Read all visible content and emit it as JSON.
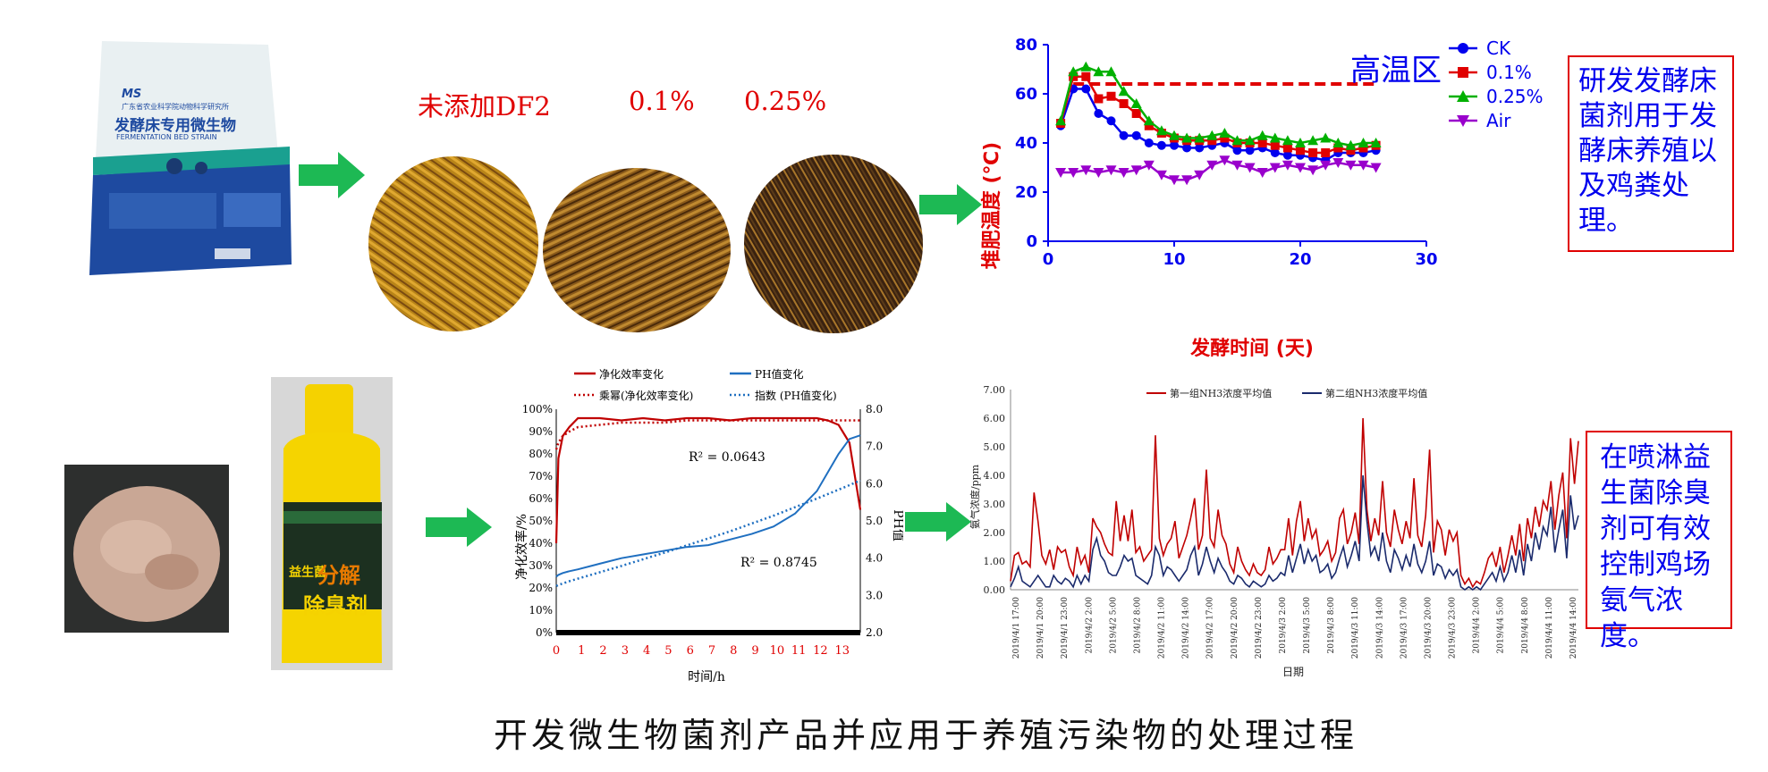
{
  "caption": "开发微生物菌剂产品并应用于养殖污染物的处理过程",
  "product_bag": {
    "brand": "MS",
    "org": "广东省农业科学院动物科学研究所",
    "title": "发酵床专用微生物",
    "title_en": "FERMENTATION BED STRAIN"
  },
  "bedding_labels": [
    "未添加DF2",
    "0.1%",
    "0.25%"
  ],
  "compost_note": "研发发酵床菌剂用于发酵床养殖以及鸡粪处理。",
  "spray_note": "在喷淋益生菌除臭剂可有效控制鸡场氨气浓度。",
  "bottle": {
    "brand_top": "益生菌",
    "big": "分解",
    "name": "除臭剂"
  },
  "colors": {
    "arrow": "#1db954",
    "red": "#e00000",
    "blue": "#0000ee",
    "green": "#00b000",
    "purple": "#9900cc",
    "navy": "#1a2a6c",
    "steel": "#1f6fc0"
  },
  "chart_data": [
    {
      "type": "line",
      "xlabel": "发酵时间 (天)",
      "ylabel": "堆肥温度 (℃)",
      "xlim": [
        0,
        30
      ],
      "ylim": [
        0,
        80
      ],
      "xticks": [
        0,
        10,
        20,
        30
      ],
      "yticks": [
        0,
        20,
        40,
        60,
        80
      ],
      "annotation": "高温区",
      "threshold": 64,
      "legend_position": "right",
      "x": [
        1,
        2,
        3,
        4,
        5,
        6,
        7,
        8,
        9,
        10,
        11,
        12,
        13,
        14,
        15,
        16,
        17,
        18,
        19,
        20,
        21,
        22,
        23,
        24,
        25,
        26
      ],
      "series": [
        {
          "name": "CK",
          "color": "#0000ee",
          "marker": "circle",
          "values": [
            47,
            62,
            62,
            52,
            49,
            43,
            43,
            40,
            39,
            39,
            38,
            38,
            39,
            40,
            37,
            37,
            38,
            36,
            35,
            35,
            34,
            33,
            36,
            36,
            36,
            37
          ]
        },
        {
          "name": "0.1%",
          "color": "#e00000",
          "marker": "square",
          "values": [
            48,
            67,
            67,
            58,
            59,
            56,
            52,
            47,
            44,
            42,
            41,
            41,
            41,
            42,
            40,
            40,
            40,
            39,
            38,
            37,
            36,
            36,
            38,
            37,
            38,
            39
          ]
        },
        {
          "name": "0.25%",
          "color": "#00b000",
          "marker": "triangle-up",
          "values": [
            49,
            69,
            71,
            69,
            69,
            61,
            56,
            49,
            45,
            43,
            42,
            42,
            43,
            44,
            41,
            41,
            43,
            42,
            41,
            40,
            41,
            42,
            40,
            39,
            40,
            40
          ]
        },
        {
          "name": "Air",
          "color": "#9900cc",
          "marker": "triangle-down",
          "values": [
            28,
            28,
            29,
            28,
            29,
            28,
            29,
            31,
            27,
            25,
            25,
            27,
            31,
            33,
            31,
            30,
            28,
            30,
            31,
            30,
            29,
            31,
            32,
            31,
            31,
            30
          ]
        }
      ]
    },
    {
      "type": "line",
      "xlabel": "时间/h",
      "ylabel": "净化效率/%",
      "y2label": "PH值",
      "xticks": [
        0,
        1,
        2,
        3,
        4,
        5,
        6,
        7,
        8,
        9,
        10,
        11,
        12,
        13
      ],
      "yticks": [
        "0%",
        "10%",
        "20%",
        "30%",
        "40%",
        "50%",
        "60%",
        "70%",
        "80%",
        "90%",
        "100%"
      ],
      "y2ticks": [
        "2.0",
        "3.0",
        "4.0",
        "5.0",
        "6.0",
        "7.0",
        "8.0"
      ],
      "xlim": [
        0,
        14
      ],
      "ylim": [
        0,
        100
      ],
      "y2lim": [
        2.0,
        8.0
      ],
      "legend": [
        "净化效率变化",
        "PH值变化",
        "乘幂(净化效率变化)",
        "指数 (PH值变化)"
      ],
      "r2_labels": [
        "R² = 0.0643",
        "R² = 0.8745"
      ],
      "x": [
        0,
        0.1,
        0.3,
        0.6,
        1,
        2,
        3,
        4,
        5,
        6,
        7,
        8,
        9,
        10,
        11,
        12,
        12.5,
        13,
        13.5,
        14
      ],
      "series": [
        {
          "name": "净化效率变化",
          "axis": "left",
          "values": [
            40,
            78,
            88,
            92,
            96,
            96,
            95,
            96,
            95,
            96,
            96,
            95,
            96,
            96,
            96,
            96,
            95,
            93,
            85,
            55
          ]
        },
        {
          "name": "PH值变化",
          "axis": "right",
          "values": [
            3.5,
            3.55,
            3.6,
            3.65,
            3.7,
            3.85,
            4.0,
            4.1,
            4.2,
            4.3,
            4.35,
            4.5,
            4.65,
            4.85,
            5.2,
            5.8,
            6.3,
            6.8,
            7.2,
            7.3
          ]
        },
        {
          "name": "乘幂(净化效率变化)",
          "axis": "left",
          "values": [
            82,
            85,
            88,
            90,
            92,
            93,
            94,
            94,
            94,
            95,
            95,
            95,
            95,
            95,
            95,
            95,
            95,
            95,
            95,
            95
          ]
        },
        {
          "name": "指数 (PH值变化)",
          "axis": "right",
          "values": [
            3.25,
            3.28,
            3.32,
            3.38,
            3.45,
            3.62,
            3.79,
            3.97,
            4.15,
            4.34,
            4.53,
            4.72,
            4.93,
            5.14,
            5.37,
            5.6,
            5.72,
            5.84,
            5.96,
            6.09
          ]
        }
      ]
    },
    {
      "type": "line",
      "xlabel": "日期",
      "ylabel": "氨气浓度/ppm",
      "ylim": [
        0,
        7
      ],
      "yticks": [
        "0.00",
        "1.00",
        "2.00",
        "3.00",
        "4.00",
        "5.00",
        "6.00",
        "7.00"
      ],
      "xticks": [
        "2019/4/1 17:00",
        "2019/4/1 20:00",
        "2019/4/1 23:00",
        "2019/4/2 2:00",
        "2019/4/2 5:00",
        "2019/4/2 8:00",
        "2019/4/2 11:00",
        "2019/4/2 14:00",
        "2019/4/2 17:00",
        "2019/4/2 20:00",
        "2019/4/2 23:00",
        "2019/4/3 2:00",
        "2019/4/3 5:00",
        "2019/4/3 8:00",
        "2019/4/3 11:00",
        "2019/4/3 14:00",
        "2019/4/3 17:00",
        "2019/4/3 20:00",
        "2019/4/3 23:00",
        "2019/4/4 2:00",
        "2019/4/4 5:00",
        "2019/4/4 8:00",
        "2019/4/4 11:00",
        "2019/4/4 14:00"
      ],
      "series": [
        {
          "name": "第一组NH3浓度平均值",
          "color": "#c00000",
          "values": [
            0.3,
            1.2,
            1.3,
            0.9,
            1.0,
            0.8,
            3.4,
            2.4,
            1.2,
            0.9,
            1.4,
            0.7,
            1.5,
            1.3,
            1.4,
            0.8,
            0.5,
            1.5,
            0.9,
            1.2,
            0.6,
            2.5,
            2.2,
            2.0,
            1.6,
            1.3,
            1.2,
            3.1,
            1.7,
            2.6,
            1.7,
            2.8,
            1.3,
            1.5,
            1.0,
            1.2,
            1.4,
            5.4,
            1.8,
            1.2,
            1.6,
            1.8,
            2.4,
            1.1,
            1.5,
            1.9,
            2.5,
            3.2,
            1.4,
            1.9,
            4.2,
            1.8,
            1.5,
            2.8,
            1.9,
            1.6,
            0.9,
            0.6,
            1.5,
            1.0,
            0.7,
            0.5,
            0.9,
            0.6,
            0.5,
            0.7,
            1.5,
            0.9,
            1.1,
            1.4,
            1.4,
            2.5,
            1.2,
            2.4,
            3.1,
            1.7,
            2.5,
            1.8,
            2.1,
            1.2,
            1.4,
            1.7,
            1.0,
            1.3,
            2.5,
            2.8,
            1.6,
            2.0,
            2.7,
            1.6,
            6.0,
            2.8,
            1.7,
            2.5,
            1.9,
            3.8,
            2.0,
            1.5,
            2.8,
            2.1,
            1.6,
            2.4,
            1.8,
            3.9,
            1.9,
            1.5,
            2.6,
            4.9,
            1.3,
            2.4,
            2.1,
            1.2,
            2.1,
            1.7,
            2.0,
            0.5,
            0.2,
            0.4,
            0.1,
            0.3,
            0.2,
            0.6,
            1.1,
            1.3,
            0.8,
            1.5,
            0.6,
            1.2,
            1.9,
            1.2,
            2.3,
            1.0,
            2.5,
            1.8,
            2.9,
            2.2,
            3.1,
            2.8,
            3.8,
            2.1,
            3.3,
            4.1,
            1.8,
            5.3,
            3.7,
            5.2
          ]
        },
        {
          "name": "第二组NH3浓度平均值",
          "color": "#1a2a6c",
          "values": [
            0.1,
            0.4,
            0.8,
            0.3,
            0.2,
            0.1,
            0.3,
            0.5,
            0.3,
            0.1,
            0.1,
            0.5,
            0.3,
            0.2,
            0.4,
            0.3,
            0.1,
            0.5,
            0.2,
            0.5,
            0.3,
            1.4,
            1.8,
            1.2,
            1.0,
            0.6,
            0.5,
            0.5,
            0.8,
            1.2,
            1.0,
            1.1,
            0.5,
            0.4,
            0.3,
            0.2,
            0.5,
            1.5,
            1.2,
            0.5,
            0.8,
            0.7,
            0.5,
            0.3,
            0.5,
            0.7,
            1.2,
            1.5,
            0.5,
            0.9,
            1.5,
            1.0,
            0.6,
            1.1,
            0.8,
            0.6,
            0.3,
            0.2,
            0.5,
            0.4,
            0.2,
            0.1,
            0.3,
            0.2,
            0.1,
            0.2,
            0.5,
            0.3,
            0.4,
            0.6,
            0.5,
            1.2,
            0.6,
            1.1,
            1.6,
            0.9,
            1.4,
            1.0,
            1.2,
            0.6,
            0.7,
            0.9,
            0.4,
            0.6,
            1.1,
            1.5,
            0.8,
            1.2,
            1.7,
            1.0,
            4.0,
            2.4,
            1.2,
            1.5,
            1.0,
            2.0,
            1.0,
            0.6,
            1.4,
            1.1,
            0.7,
            1.2,
            0.8,
            1.6,
            0.9,
            0.6,
            1.0,
            1.7,
            0.5,
            0.9,
            0.8,
            0.4,
            0.7,
            0.5,
            0.7,
            0.1,
            0.0,
            0.1,
            0.0,
            0.1,
            0.0,
            0.2,
            0.4,
            0.6,
            0.3,
            0.8,
            0.3,
            0.6,
            1.2,
            0.6,
            1.4,
            0.5,
            1.6,
            1.0,
            2.0,
            1.4,
            2.2,
            1.9,
            2.9,
            1.3,
            2.1,
            2.8,
            1.1,
            3.3,
            2.1,
            2.6
          ]
        }
      ]
    }
  ]
}
